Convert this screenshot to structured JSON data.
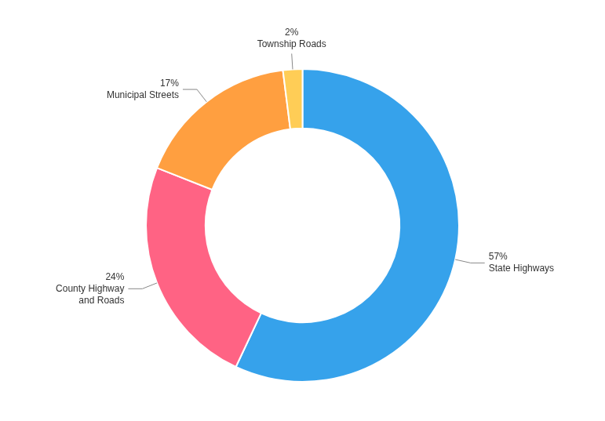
{
  "chart_data": {
    "type": "doughnut",
    "categories": [
      "State Highways",
      "County Highway\nand Roads",
      "Municipal Streets",
      "Township Roads"
    ],
    "values": [
      57,
      24,
      17,
      2
    ],
    "value_labels": [
      "57%",
      "24%",
      "17%",
      "2%"
    ],
    "data_labels": true,
    "legend": false
  }
}
